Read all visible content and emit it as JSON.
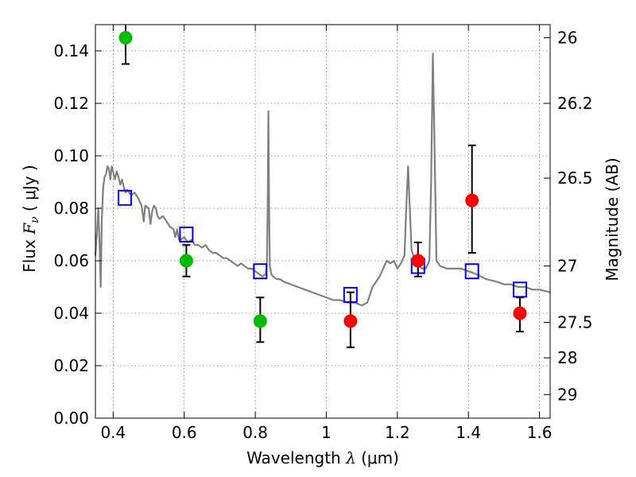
{
  "chart_data": {
    "type": "scatter",
    "x_axis": {
      "label_prefix": "Wavelength  ",
      "label_symbol": "λ",
      "label_units": " (μm)",
      "range": [
        0.35,
        1.63
      ],
      "ticks": [
        0.4,
        0.6,
        0.8,
        1.0,
        1.2,
        1.4,
        1.6
      ],
      "tick_labels": [
        "0.4",
        "0.6",
        "0.8",
        "1",
        "1.2",
        "1.4",
        "1.6"
      ]
    },
    "y_axis_left": {
      "label_prefix": "Flux  ",
      "label_symbol": "F",
      "label_subscript": "ν",
      "label_units": "  ( μJy )",
      "range": [
        0.0,
        0.15
      ],
      "ticks": [
        0.0,
        0.02,
        0.04,
        0.06,
        0.08,
        0.1,
        0.12,
        0.14
      ],
      "tick_labels": [
        "0.00",
        "0.02",
        "0.04",
        "0.06",
        "0.08",
        "0.10",
        "0.12",
        "0.14"
      ]
    },
    "y_axis_right": {
      "label": "Magnitude (AB)",
      "ticks": [
        {
          "flux": 0.145,
          "label": "26"
        },
        {
          "flux": 0.12,
          "label": "26.2"
        },
        {
          "flux": 0.0915,
          "label": "26.5"
        },
        {
          "flux": 0.058,
          "label": "27"
        },
        {
          "flux": 0.0365,
          "label": "27.5"
        },
        {
          "flux": 0.023,
          "label": "28"
        },
        {
          "flux": 0.009,
          "label": "29"
        }
      ]
    },
    "grid": true,
    "series": [
      {
        "kind": "line",
        "color": "#808080",
        "points": [
          [
            0.35,
            0.062
          ],
          [
            0.355,
            0.072
          ],
          [
            0.358,
            0.08
          ],
          [
            0.362,
            0.065
          ],
          [
            0.365,
            0.05
          ],
          [
            0.368,
            0.075
          ],
          [
            0.372,
            0.088
          ],
          [
            0.376,
            0.092
          ],
          [
            0.38,
            0.093
          ],
          [
            0.384,
            0.096
          ],
          [
            0.388,
            0.095
          ],
          [
            0.392,
            0.091
          ],
          [
            0.396,
            0.096
          ],
          [
            0.4,
            0.094
          ],
          [
            0.405,
            0.091
          ],
          [
            0.41,
            0.094
          ],
          [
            0.415,
            0.092
          ],
          [
            0.42,
            0.089
          ],
          [
            0.425,
            0.091
          ],
          [
            0.43,
            0.088
          ],
          [
            0.435,
            0.086
          ],
          [
            0.44,
            0.087
          ],
          [
            0.45,
            0.085
          ],
          [
            0.46,
            0.086
          ],
          [
            0.47,
            0.084
          ],
          [
            0.48,
            0.081
          ],
          [
            0.486,
            0.075
          ],
          [
            0.49,
            0.081
          ],
          [
            0.5,
            0.08
          ],
          [
            0.505,
            0.074
          ],
          [
            0.51,
            0.079
          ],
          [
            0.515,
            0.081
          ],
          [
            0.52,
            0.08
          ],
          [
            0.525,
            0.077
          ],
          [
            0.53,
            0.076
          ],
          [
            0.54,
            0.077
          ],
          [
            0.55,
            0.075
          ],
          [
            0.56,
            0.073
          ],
          [
            0.57,
            0.072
          ],
          [
            0.575,
            0.069
          ],
          [
            0.58,
            0.072
          ],
          [
            0.585,
            0.068
          ],
          [
            0.59,
            0.068
          ],
          [
            0.6,
            0.069
          ],
          [
            0.61,
            0.067
          ],
          [
            0.62,
            0.068
          ],
          [
            0.63,
            0.066
          ],
          [
            0.64,
            0.066
          ],
          [
            0.65,
            0.065
          ],
          [
            0.66,
            0.066
          ],
          [
            0.67,
            0.064
          ],
          [
            0.68,
            0.063
          ],
          [
            0.69,
            0.063
          ],
          [
            0.7,
            0.062
          ],
          [
            0.71,
            0.061
          ],
          [
            0.72,
            0.061
          ],
          [
            0.73,
            0.06
          ],
          [
            0.74,
            0.059
          ],
          [
            0.75,
            0.058
          ],
          [
            0.76,
            0.059
          ],
          [
            0.77,
            0.058
          ],
          [
            0.78,
            0.057
          ],
          [
            0.79,
            0.057
          ],
          [
            0.8,
            0.056
          ],
          [
            0.81,
            0.055
          ],
          [
            0.82,
            0.054
          ],
          [
            0.83,
            0.055
          ],
          [
            0.833,
            0.06
          ],
          [
            0.835,
            0.08
          ],
          [
            0.837,
            0.117
          ],
          [
            0.839,
            0.08
          ],
          [
            0.841,
            0.058
          ],
          [
            0.845,
            0.055
          ],
          [
            0.85,
            0.054
          ],
          [
            0.86,
            0.053
          ],
          [
            0.87,
            0.053
          ],
          [
            0.88,
            0.052
          ],
          [
            0.9,
            0.051
          ],
          [
            0.92,
            0.05
          ],
          [
            0.94,
            0.049
          ],
          [
            0.96,
            0.048
          ],
          [
            0.98,
            0.047
          ],
          [
            1.0,
            0.046
          ],
          [
            1.02,
            0.045
          ],
          [
            1.04,
            0.045
          ],
          [
            1.06,
            0.044
          ],
          [
            1.08,
            0.044
          ],
          [
            1.1,
            0.043
          ],
          [
            1.115,
            0.044
          ],
          [
            1.13,
            0.05
          ],
          [
            1.15,
            0.054
          ],
          [
            1.17,
            0.06
          ],
          [
            1.18,
            0.059
          ],
          [
            1.19,
            0.06
          ],
          [
            1.2,
            0.057
          ],
          [
            1.21,
            0.059
          ],
          [
            1.22,
            0.062
          ],
          [
            1.225,
            0.08
          ],
          [
            1.23,
            0.096
          ],
          [
            1.235,
            0.08
          ],
          [
            1.24,
            0.064
          ],
          [
            1.25,
            0.06
          ],
          [
            1.26,
            0.058
          ],
          [
            1.27,
            0.057
          ],
          [
            1.28,
            0.057
          ],
          [
            1.29,
            0.06
          ],
          [
            1.295,
            0.09
          ],
          [
            1.3,
            0.139
          ],
          [
            1.305,
            0.1
          ],
          [
            1.31,
            0.06
          ],
          [
            1.32,
            0.058
          ],
          [
            1.34,
            0.057
          ],
          [
            1.36,
            0.057
          ],
          [
            1.38,
            0.057
          ],
          [
            1.4,
            0.056
          ],
          [
            1.42,
            0.055
          ],
          [
            1.45,
            0.053
          ],
          [
            1.48,
            0.052
          ],
          [
            1.5,
            0.051
          ],
          [
            1.52,
            0.051
          ],
          [
            1.54,
            0.05
          ],
          [
            1.56,
            0.05
          ],
          [
            1.58,
            0.049
          ],
          [
            1.6,
            0.049
          ],
          [
            1.63,
            0.048
          ]
        ]
      },
      {
        "kind": "open-square",
        "color": "#0000ff",
        "points": [
          [
            0.433,
            0.084
          ],
          [
            0.606,
            0.07
          ],
          [
            0.814,
            0.056
          ],
          [
            1.068,
            0.047
          ],
          [
            1.258,
            0.058
          ],
          [
            1.41,
            0.056
          ],
          [
            1.545,
            0.049
          ]
        ]
      },
      {
        "kind": "dot-errorbar",
        "color": "#00bb00",
        "points": [
          {
            "x": 0.435,
            "y": 0.145,
            "ylo": 0.135,
            "yhi": 0.155
          },
          {
            "x": 0.606,
            "y": 0.06,
            "ylo": 0.054,
            "yhi": 0.066
          },
          {
            "x": 0.814,
            "y": 0.037,
            "ylo": 0.029,
            "yhi": 0.046
          }
        ]
      },
      {
        "kind": "dot-errorbar",
        "color": "#ff0000",
        "points": [
          {
            "x": 1.068,
            "y": 0.037,
            "ylo": 0.027,
            "yhi": 0.048
          },
          {
            "x": 1.258,
            "y": 0.06,
            "ylo": 0.054,
            "yhi": 0.067
          },
          {
            "x": 1.41,
            "y": 0.083,
            "ylo": 0.063,
            "yhi": 0.104
          },
          {
            "x": 1.545,
            "y": 0.04,
            "ylo": 0.033,
            "yhi": 0.046
          }
        ]
      }
    ]
  }
}
